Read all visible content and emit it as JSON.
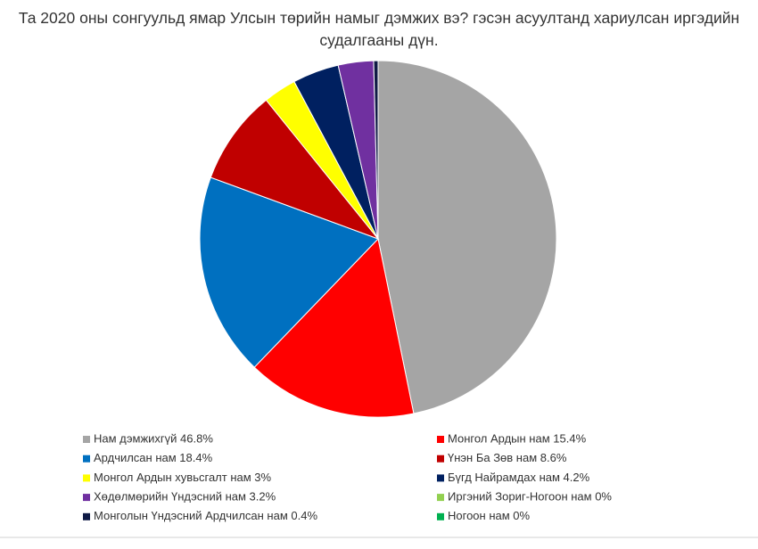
{
  "chart_data": {
    "type": "pie",
    "title": "Та 2020 оны сонгуульд ямар Улсын төрийн намыг дэмжих вэ? гэсэн асуултанд хариулсан иргэдийн судалгааны дүн.",
    "categories": [
      "Нам дэмжихгүй 46.8%",
      "Монгол Ардын нам 15.4%",
      "Ардчилсан нам 18.4%",
      "Үнэн Ба Зөв нам 8.6%",
      "Монгол Ардын хувьсгалт нам 3%",
      "Бүгд Найрамдах нам 4.2%",
      "Хөдөлмөрийн Үндэсний нам 3.2%",
      "Иргэний Зориг-Ногоон нам 0%",
      "Монголын Үндэсний Ардчилсан нам 0.4%",
      "Ногоон нам 0%"
    ],
    "values": [
      46.8,
      15.4,
      18.4,
      8.6,
      3,
      4.2,
      3.2,
      0,
      0.4,
      0
    ],
    "colors": [
      "#a5a5a5",
      "#ff0000",
      "#0070c0",
      "#c00000",
      "#ffff00",
      "#002060",
      "#7030a0",
      "#92d050",
      "#0f1a45",
      "#00b050"
    ],
    "legend": "bottom"
  }
}
